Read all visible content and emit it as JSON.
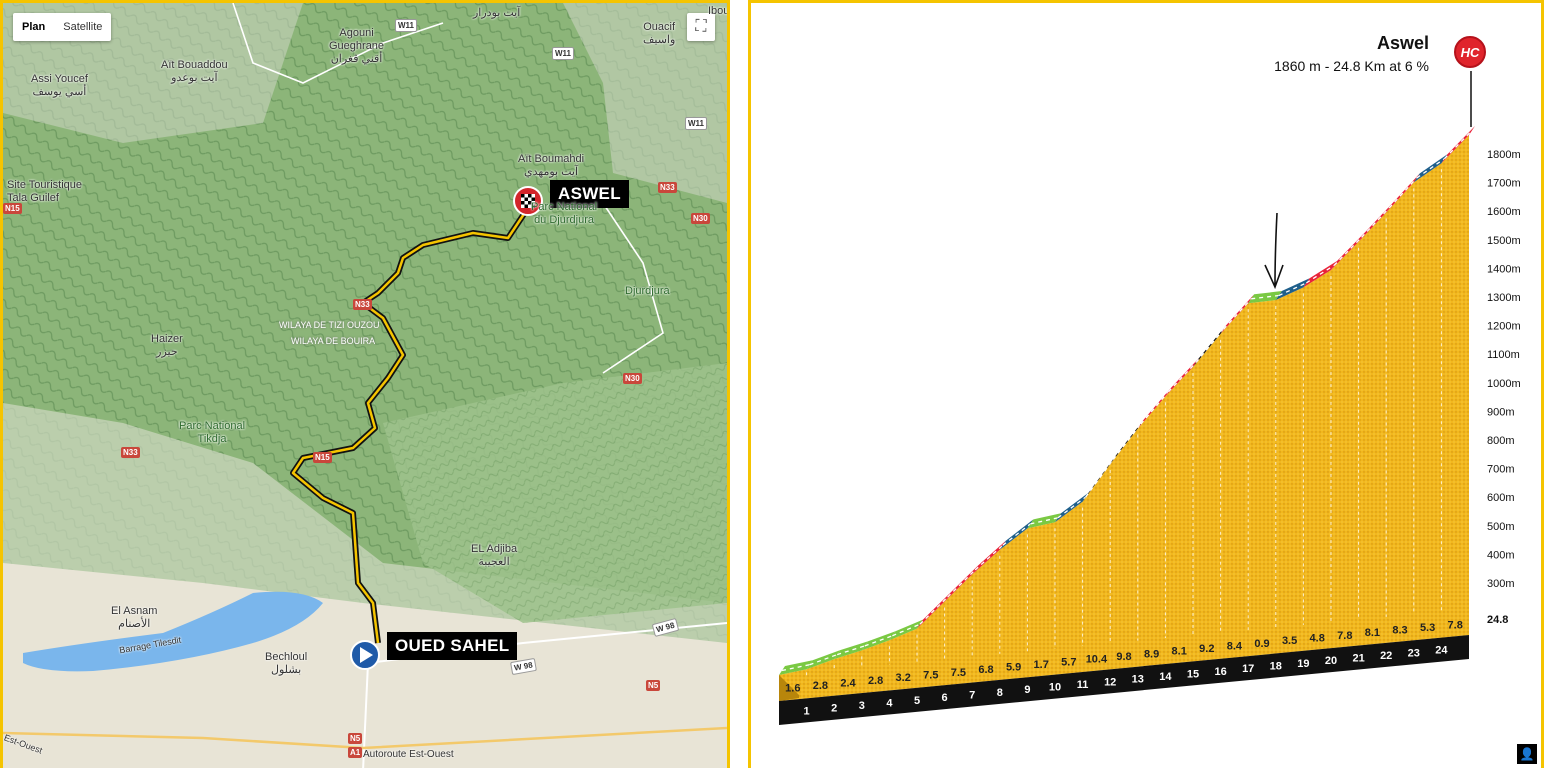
{
  "map": {
    "map_type_buttons": [
      "Plan",
      "Satellite"
    ],
    "fullscreen_icon": "fullscreen-icon",
    "start_label": "OUED SAHEL",
    "finish_label": "ASWEL",
    "place_labels": [
      {
        "id": "assi-youcef",
        "text": "Assi Youcef\nأسي يوسف"
      },
      {
        "id": "ait-bouaddou",
        "text": "Aït Bouaddou\nآيت بوعدو"
      },
      {
        "id": "agouni-gueghrane",
        "text": "Agouni\nGueghrane\nأقني ڤغران"
      },
      {
        "id": "ait-boumahdi",
        "text": "Aït Boumahdi\nآيت بومهدي"
      },
      {
        "id": "site-touristique",
        "text": "Site Touristique\nTala Guilef"
      },
      {
        "id": "parc-djurdjura",
        "text": "Parc National\ndu Djurdjura"
      },
      {
        "id": "djurdjura",
        "text": "Djurdjura"
      },
      {
        "id": "haizer",
        "text": "Haizer\nحيزر"
      },
      {
        "id": "wilaya-tizi",
        "text": "WILAYA DE TIZI OUZOU"
      },
      {
        "id": "wilaya-bouira",
        "text": "WILAYA DE BOUIRA"
      },
      {
        "id": "parc-tikdja",
        "text": "Parc National\nTikdja"
      },
      {
        "id": "el-adjiba",
        "text": "EL Adjiba\nالعجيبة"
      },
      {
        "id": "el-asnam",
        "text": "El Asnam\nالأصنام"
      },
      {
        "id": "barrage",
        "text": "Barrage Tilesdit"
      },
      {
        "id": "bechloul",
        "text": "Bechloul\nبشلول"
      },
      {
        "id": "autoroute",
        "text": "Autoroute Est-Ouest"
      },
      {
        "id": "est-ouest",
        "text": "Est-Ouest"
      },
      {
        "id": "ouacif",
        "text": "Ouacif\nواسيف"
      },
      {
        "id": "ait-boudrar",
        "text": "آيت بودرار"
      },
      {
        "id": "ibou",
        "text": "Ibou"
      }
    ],
    "road_labels": [
      "W11",
      "W11",
      "W11",
      "N33",
      "N30",
      "N30",
      "N33",
      "N5",
      "N5",
      "A1",
      "W 98",
      "W 98",
      "N33",
      "N15",
      "N15"
    ]
  },
  "profile": {
    "title": "Aswel",
    "subtitle": "1860 m - 24.8 Km at 6 %",
    "category_badge": "HC",
    "total_distance_label": "24.8",
    "altitude_ticks": [
      "300m",
      "400m",
      "500m",
      "600m",
      "700m",
      "800m",
      "900m",
      "1000m",
      "1100m",
      "1200m",
      "1300m",
      "1400m",
      "1500m",
      "1600m",
      "1700m",
      "1800m"
    ],
    "km_labels": [
      "1",
      "2",
      "3",
      "4",
      "5",
      "6",
      "7",
      "8",
      "9",
      "10",
      "11",
      "12",
      "13",
      "14",
      "15",
      "16",
      "17",
      "18",
      "19",
      "20",
      "21",
      "22",
      "23",
      "24"
    ],
    "gradients": [
      "1.6",
      "2.8",
      "2.4",
      "2.8",
      "3.2",
      "7.5",
      "7.5",
      "6.8",
      "5.9",
      "1.7",
      "5.7",
      "10.4",
      "9.8",
      "8.9",
      "8.1",
      "9.2",
      "8.4",
      "0.9",
      "3.5",
      "4.8",
      "7.8",
      "8.1",
      "8.3",
      "5.3",
      "7.8"
    ],
    "segment_colors": [
      "#7ac943",
      "#7ac943",
      "#7ac943",
      "#7ac943",
      "#7ac943",
      "#e8233a",
      "#e8233a",
      "#e8233a",
      "#1f5f8b",
      "#7ac943",
      "#1f5f8b",
      "#111111",
      "#111111",
      "#e8233a",
      "#e8233a",
      "#111111",
      "#e8233a",
      "#7ac943",
      "#1f5f8b",
      "#e8233a",
      "#e8233a",
      "#e8233a",
      "#e8233a",
      "#1f5f8b",
      "#e8233a"
    ],
    "user_icon": "user-icon"
  }
}
